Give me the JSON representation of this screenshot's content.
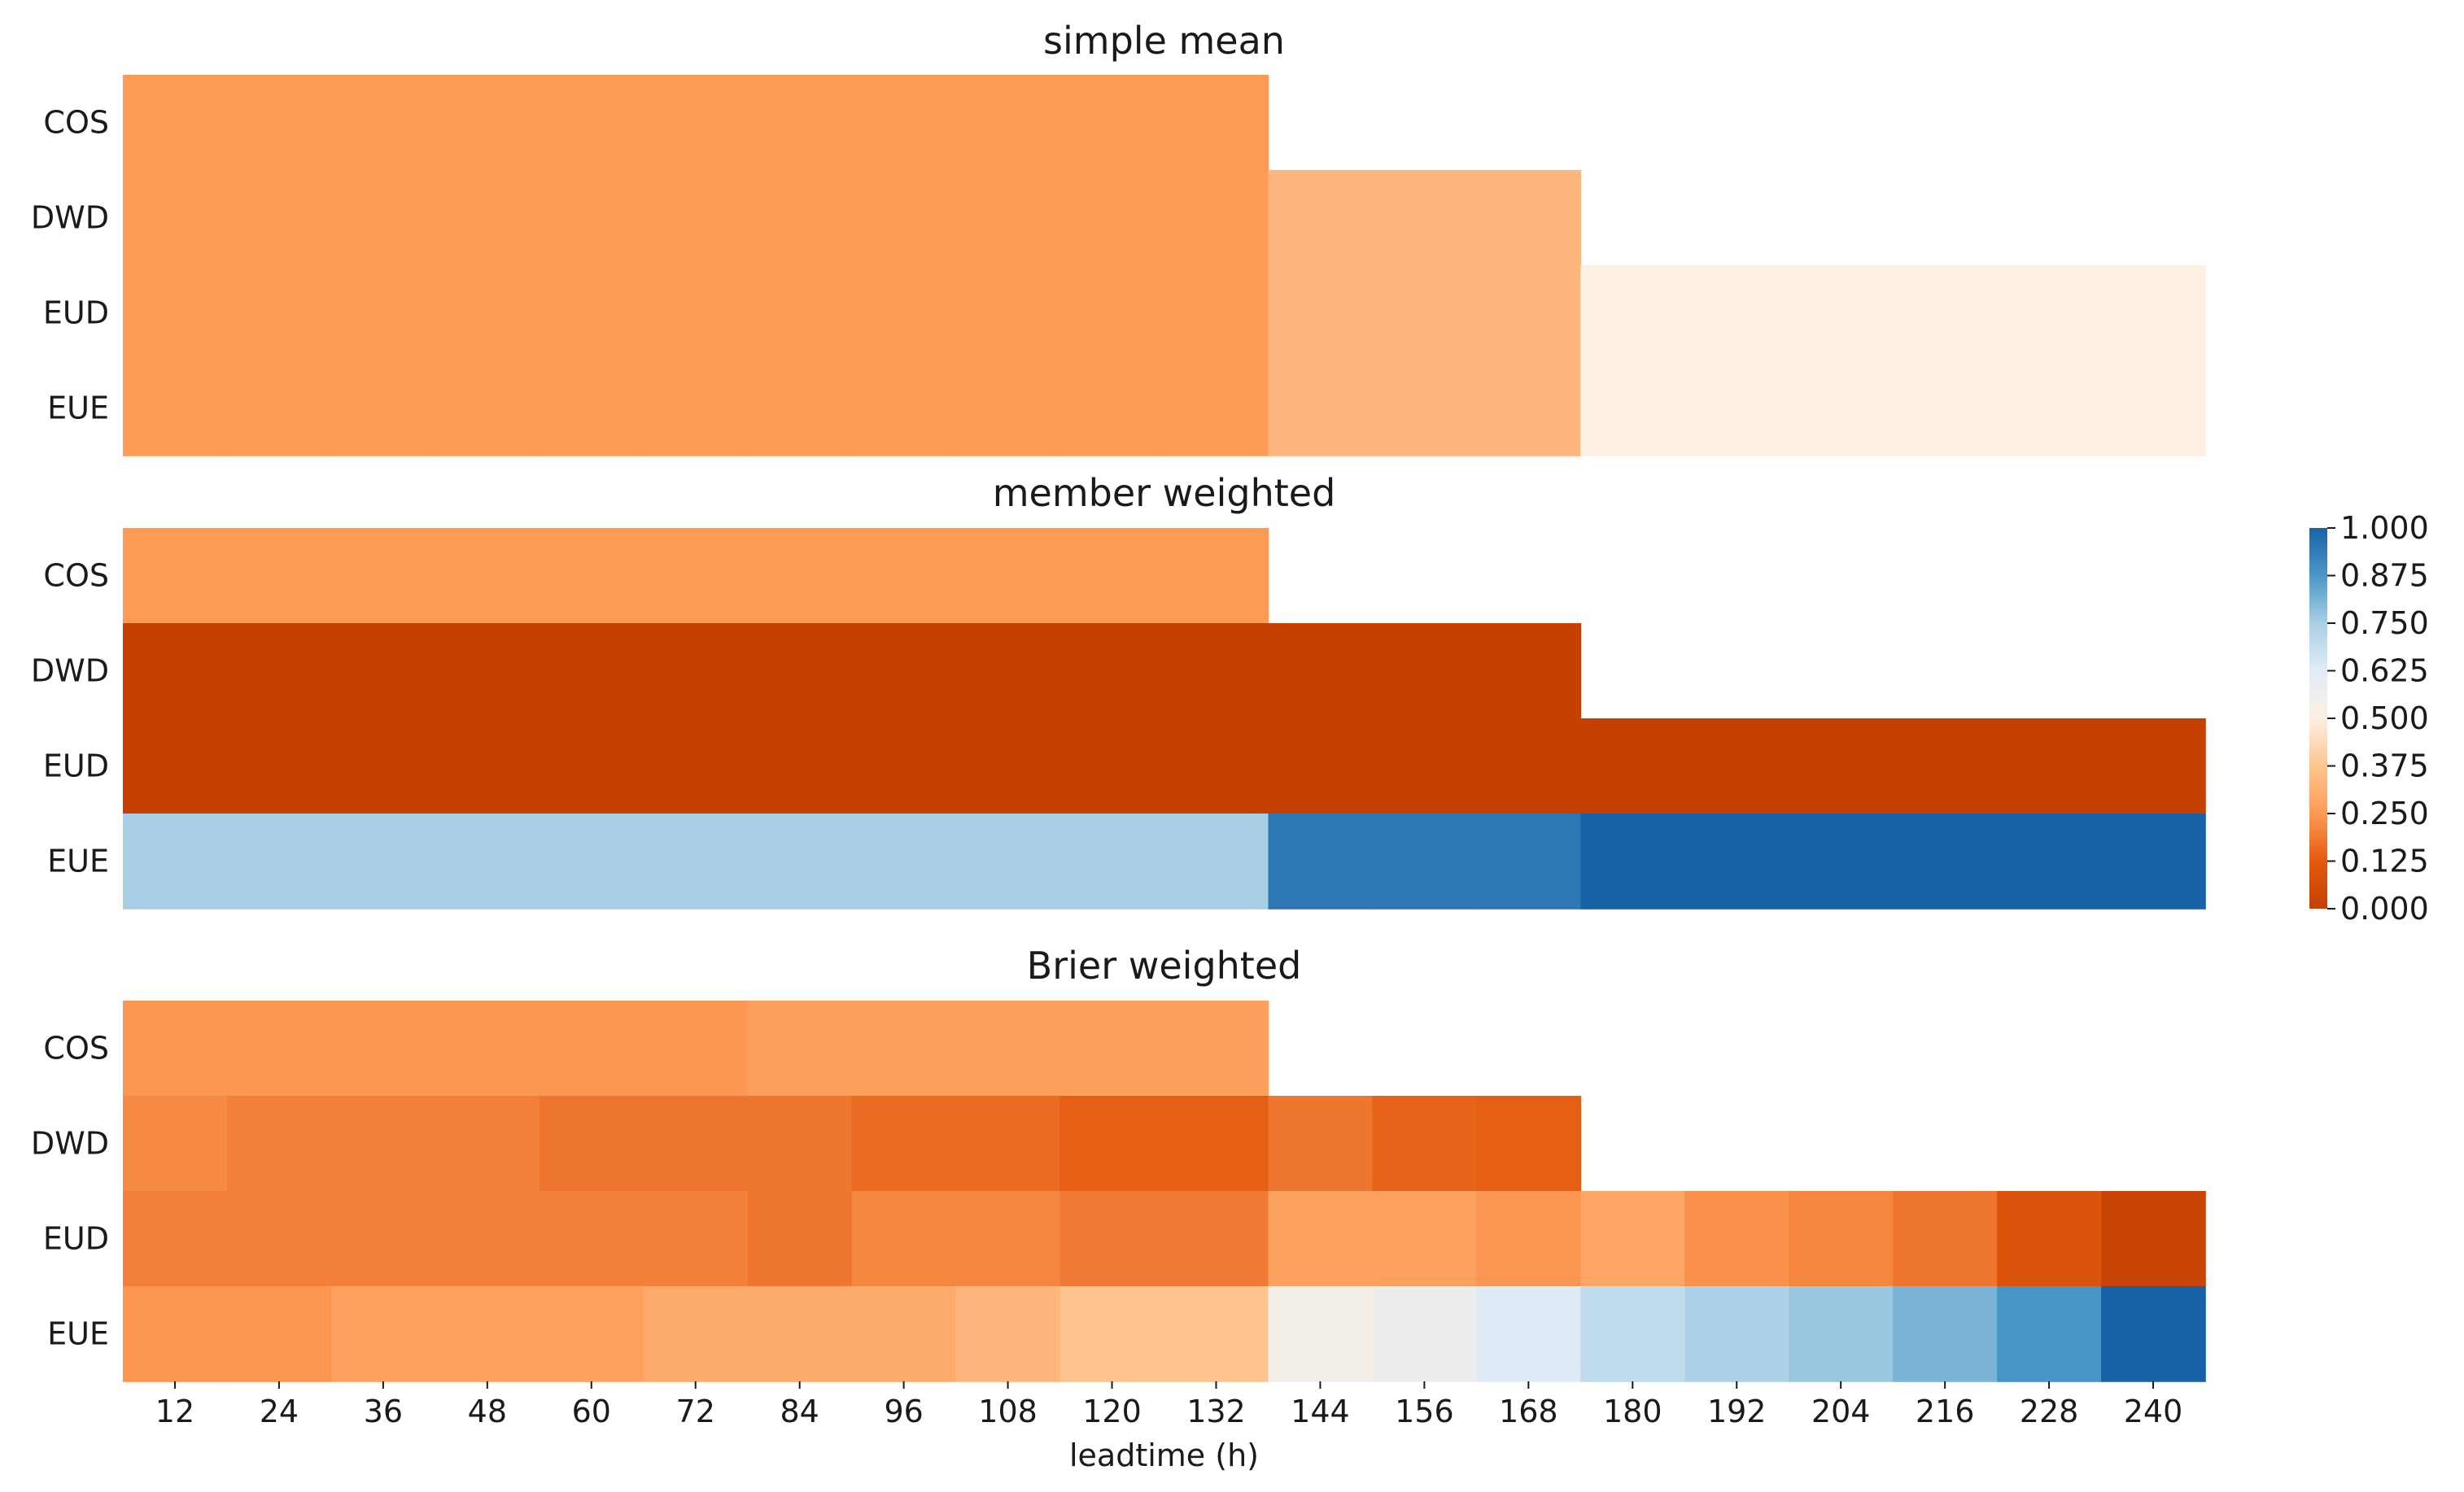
{
  "chart_data": {
    "type": "heatmap",
    "xlabel": "leadtime (h)",
    "x": [
      12,
      24,
      36,
      48,
      60,
      72,
      84,
      96,
      108,
      120,
      132,
      144,
      156,
      168,
      180,
      192,
      204,
      216,
      228,
      240
    ],
    "rows": [
      "COS",
      "DWD",
      "EUD",
      "EUE"
    ],
    "colorbar": {
      "min": 0.0,
      "max": 1.0,
      "ticks": [
        "0.000",
        "0.125",
        "0.250",
        "0.375",
        "0.500",
        "0.625",
        "0.750",
        "0.875",
        "1.000"
      ],
      "colormap": "orange-white-blue diverging",
      "placement": "right"
    },
    "panels": [
      {
        "title": "simple mean",
        "values": [
          [
            0.25,
            0.25,
            0.25,
            0.25,
            0.25,
            0.25,
            0.25,
            0.25,
            0.25,
            0.25,
            0.25,
            null,
            null,
            null,
            null,
            null,
            null,
            null,
            null,
            null
          ],
          [
            0.25,
            0.25,
            0.25,
            0.25,
            0.25,
            0.25,
            0.25,
            0.25,
            0.25,
            0.25,
            0.25,
            0.333,
            0.333,
            0.333,
            null,
            null,
            null,
            null,
            null,
            null
          ],
          [
            0.25,
            0.25,
            0.25,
            0.25,
            0.25,
            0.25,
            0.25,
            0.25,
            0.25,
            0.25,
            0.25,
            0.333,
            0.333,
            0.333,
            0.5,
            0.5,
            0.5,
            0.5,
            0.5,
            0.5
          ],
          [
            0.25,
            0.25,
            0.25,
            0.25,
            0.25,
            0.25,
            0.25,
            0.25,
            0.25,
            0.25,
            0.25,
            0.333,
            0.333,
            0.333,
            0.5,
            0.5,
            0.5,
            0.5,
            0.5,
            0.5
          ]
        ]
      },
      {
        "title": "member weighted",
        "values": [
          [
            0.25,
            0.25,
            0.25,
            0.25,
            0.25,
            0.25,
            0.25,
            0.25,
            0.25,
            0.25,
            0.25,
            null,
            null,
            null,
            null,
            null,
            null,
            null,
            null,
            null
          ],
          [
            0.0,
            0.0,
            0.0,
            0.0,
            0.0,
            0.0,
            0.0,
            0.0,
            0.0,
            0.0,
            0.0,
            0.0,
            0.0,
            0.0,
            null,
            null,
            null,
            null,
            null,
            null
          ],
          [
            0.0,
            0.0,
            0.0,
            0.0,
            0.0,
            0.0,
            0.0,
            0.0,
            0.0,
            0.0,
            0.0,
            0.0,
            0.0,
            0.0,
            0.0,
            0.0,
            0.0,
            0.0,
            0.0,
            0.0
          ],
          [
            0.75,
            0.75,
            0.75,
            0.75,
            0.75,
            0.75,
            0.75,
            0.75,
            0.75,
            0.75,
            0.75,
            0.95,
            0.95,
            0.95,
            1.0,
            1.0,
            1.0,
            1.0,
            1.0,
            1.0
          ]
        ]
      },
      {
        "title": "Brier weighted",
        "values": [
          [
            0.245,
            0.245,
            0.245,
            0.245,
            0.245,
            0.245,
            0.265,
            0.265,
            0.265,
            0.265,
            0.265,
            null,
            null,
            null,
            null,
            null,
            null,
            null,
            null,
            null
          ],
          [
            0.22,
            0.2,
            0.2,
            0.2,
            0.18,
            0.18,
            0.18,
            0.16,
            0.16,
            0.135,
            0.135,
            0.18,
            0.145,
            0.135,
            null,
            null,
            null,
            null,
            null,
            null
          ],
          [
            0.2,
            0.2,
            0.2,
            0.2,
            0.2,
            0.2,
            0.18,
            0.21,
            0.21,
            0.19,
            0.19,
            0.27,
            0.27,
            0.245,
            0.285,
            0.23,
            0.21,
            0.18,
            0.095,
            0.02
          ],
          [
            0.24,
            0.24,
            0.27,
            0.27,
            0.27,
            0.3,
            0.3,
            0.3,
            0.33,
            0.37,
            0.37,
            0.54,
            0.57,
            0.63,
            0.7,
            0.74,
            0.77,
            0.81,
            0.88,
            1.0
          ]
        ]
      }
    ]
  }
}
